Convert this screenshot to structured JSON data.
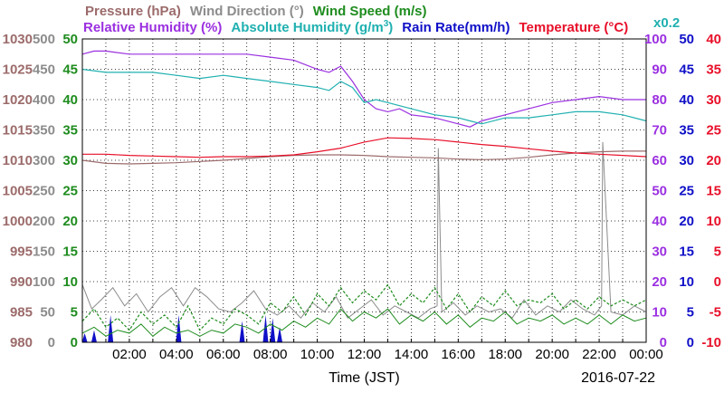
{
  "chart_data": {
    "type": "line",
    "date": "2016-07-22",
    "xlabel": "Time (JST)",
    "x_ticks": [
      "02:00",
      "04:00",
      "06:00",
      "08:00",
      "10:00",
      "12:00",
      "14:00",
      "16:00",
      "18:00",
      "20:00",
      "22:00",
      "00:00"
    ],
    "x_range": [
      0,
      24
    ],
    "grid": true,
    "legend_row1": [
      {
        "label": "Pressure (hPa)",
        "color": "#9c6b6b"
      },
      {
        "label": "Wind Direction (",
        "suffix": "°)",
        "color": "#8c8c8c"
      },
      {
        "label": "Wind Speed (m/s)",
        "color": "#1e8c1e"
      }
    ],
    "legend_row2": [
      {
        "label": "Relative Humidity (%)",
        "color": "#9b30e0"
      },
      {
        "label": "Absolute Humidity (g/m",
        "sup": "3",
        "suffix": ")",
        "color": "#20b0b0"
      },
      {
        "label": "Rain Rate(mm/h)",
        "color": "#1010c8"
      },
      {
        "label": "Temperature (",
        "suffix": "°C)",
        "color": "#e8102a"
      }
    ],
    "multiplier_label": "x0.2",
    "axes": {
      "pressure": {
        "color": "#9c6b6b",
        "ticks": [
          "980",
          "985",
          "990",
          "995",
          "1000",
          "1005",
          "1010",
          "1015",
          "1020",
          "1025",
          "1030"
        ],
        "range": [
          980,
          1030
        ]
      },
      "wind_direction": {
        "color": "#8c8c8c",
        "ticks": [
          "0",
          "50",
          "100",
          "150",
          "200",
          "250",
          "300",
          "350",
          "400",
          "450",
          "500"
        ],
        "range": [
          0,
          500
        ]
      },
      "wind_speed": {
        "color": "#1e8c1e",
        "ticks": [
          "0",
          "5",
          "10",
          "15",
          "20",
          "25",
          "30",
          "35",
          "40",
          "45",
          "50"
        ],
        "range": [
          0,
          50
        ]
      },
      "relative_humidity": {
        "color": "#9b30e0",
        "ticks": [
          "0",
          "10",
          "20",
          "30",
          "40",
          "50",
          "60",
          "70",
          "80",
          "90",
          "100"
        ],
        "range": [
          0,
          100
        ]
      },
      "rain_rate": {
        "color": "#1010c8",
        "ticks": [
          "0",
          "5",
          "10",
          "15",
          "20",
          "25",
          "30",
          "35",
          "40",
          "45",
          "50"
        ],
        "range": [
          0,
          50
        ]
      },
      "temperature": {
        "color": "#e8102a",
        "ticks": [
          "-10",
          "-5",
          "0",
          "5",
          "10",
          "15",
          "20",
          "25",
          "30",
          "35",
          "40"
        ],
        "range": [
          -10,
          40
        ]
      }
    },
    "series": [
      {
        "name": "Pressure (hPa)",
        "axis": "pressure",
        "color": "#9c6b6b",
        "x": [
          0,
          1,
          2,
          3,
          4,
          5,
          6,
          7,
          8,
          9,
          10,
          11,
          12,
          13,
          14,
          15,
          16,
          17,
          18,
          19,
          20,
          21,
          22,
          23,
          24
        ],
        "y": [
          1010.0,
          1009.5,
          1009.4,
          1009.5,
          1009.6,
          1009.8,
          1010.0,
          1010.3,
          1010.6,
          1010.8,
          1010.9,
          1010.9,
          1010.8,
          1010.6,
          1010.5,
          1010.4,
          1010.2,
          1010.1,
          1010.2,
          1010.5,
          1010.9,
          1011.2,
          1011.4,
          1011.5,
          1011.5
        ]
      },
      {
        "name": "Relative Humidity (%)",
        "axis": "relative_humidity",
        "color": "#9b30e0",
        "x": [
          0,
          0.5,
          1,
          2,
          3,
          4,
          5,
          6,
          7,
          8,
          9,
          10,
          10.5,
          11,
          11.5,
          12,
          12.5,
          13,
          13.5,
          14,
          15,
          16,
          16.5,
          17,
          18,
          19,
          20,
          21,
          22,
          23,
          24
        ],
        "y": [
          95,
          96,
          96,
          95,
          95,
          95,
          95,
          95,
          95,
          94,
          93,
          90,
          89,
          91,
          86,
          80,
          77,
          76,
          77,
          75,
          74,
          72,
          71,
          73,
          75,
          77,
          79,
          80,
          81,
          80,
          80
        ]
      },
      {
        "name": "Absolute Humidity (g/m3)",
        "axis": "relative_humidity",
        "color": "#20b0b0",
        "x": [
          0,
          1,
          2,
          3,
          4,
          5,
          6,
          7,
          8,
          9,
          10,
          10.5,
          11,
          11.5,
          12,
          12.5,
          13,
          13.5,
          14,
          15,
          16,
          16.5,
          17,
          18,
          19,
          20,
          21,
          22,
          23,
          24
        ],
        "y": [
          90,
          89,
          89,
          89,
          88,
          87,
          88,
          87,
          86,
          85,
          84,
          83,
          86,
          84,
          79,
          80,
          79,
          78,
          77,
          75,
          74,
          73,
          72,
          74,
          74,
          75,
          76,
          76,
          75,
          73
        ]
      },
      {
        "name": "Temperature (°C)",
        "axis": "temperature",
        "color": "#e8102a",
        "x": [
          0,
          1,
          2,
          3,
          4,
          5,
          6,
          7,
          8,
          9,
          10,
          11,
          12,
          13,
          14,
          15,
          16,
          17,
          18,
          19,
          20,
          21,
          22,
          23,
          24
        ],
        "y": [
          21.0,
          21.0,
          20.8,
          20.7,
          20.6,
          20.5,
          20.6,
          20.6,
          20.7,
          20.9,
          21.4,
          22.0,
          23.0,
          23.7,
          23.6,
          23.4,
          23.0,
          22.6,
          22.3,
          21.9,
          21.5,
          21.2,
          21.0,
          20.8,
          20.6
        ]
      },
      {
        "name": "Wind Direction (°)",
        "axis": "wind_direction",
        "color": "#8c8c8c",
        "style": "noisy",
        "x": [
          0,
          0.4,
          0.8,
          1.3,
          1.8,
          2.3,
          2.8,
          3.3,
          3.8,
          4.3,
          4.8,
          5.3,
          5.8,
          6.3,
          6.8,
          7.3,
          7.8,
          8.3,
          8.8,
          9.3,
          9.8,
          10.3,
          10.8,
          11.3,
          11.8,
          12.3,
          12.8,
          13.3,
          13.8,
          14.3,
          14.8,
          15.1,
          15.15,
          15.3,
          15.8,
          16.3,
          16.8,
          17.3,
          17.8,
          18.3,
          18.8,
          19.3,
          19.8,
          20.3,
          20.8,
          21.3,
          21.8,
          22.1,
          22.15,
          22.5,
          23.0,
          23.5,
          24
        ],
        "y": [
          95,
          55,
          70,
          90,
          60,
          80,
          50,
          75,
          90,
          60,
          90,
          75,
          55,
          50,
          65,
          85,
          55,
          45,
          60,
          40,
          65,
          50,
          75,
          40,
          55,
          70,
          45,
          60,
          50,
          40,
          55,
          60,
          320,
          50,
          65,
          45,
          60,
          50,
          55,
          40,
          70,
          45,
          60,
          50,
          70,
          55,
          45,
          60,
          330,
          50,
          45,
          60,
          50
        ]
      },
      {
        "name": "Wind Speed (m/s)",
        "axis": "wind_speed",
        "color": "#1e8c1e",
        "style": "noisy",
        "x": [
          0,
          0.5,
          1,
          1.5,
          2,
          2.5,
          3,
          3.5,
          4,
          4.5,
          5,
          5.5,
          6,
          6.5,
          7,
          7.5,
          8,
          8.5,
          9,
          9.5,
          10,
          10.5,
          11,
          11.5,
          12,
          12.5,
          13,
          13.5,
          14,
          14.5,
          15,
          15.5,
          16,
          16.5,
          17,
          17.5,
          18,
          18.5,
          19,
          19.5,
          20,
          20.5,
          21,
          21.5,
          22,
          22.5,
          23,
          23.5,
          24
        ],
        "y": [
          1.5,
          2.5,
          1.0,
          2.0,
          1.5,
          3.0,
          1.0,
          2.5,
          1.5,
          2.0,
          1.0,
          2.0,
          1.5,
          3.0,
          2.5,
          1.5,
          3.0,
          2.0,
          3.5,
          2.5,
          4.0,
          3.0,
          5.5,
          3.5,
          5.0,
          4.0,
          5.5,
          3.0,
          4.5,
          3.5,
          5.0,
          3.0,
          4.5,
          2.5,
          4.0,
          3.5,
          5.0,
          3.0,
          4.0,
          3.5,
          4.5,
          3.0,
          4.0,
          3.0,
          4.5,
          3.0,
          4.5,
          3.5,
          4.0
        ]
      },
      {
        "name": "Wind Speed gust (m/s)",
        "axis": "wind_speed",
        "color": "#1e8c1e",
        "style": "dashed",
        "x": [
          0,
          0.5,
          1,
          1.5,
          2,
          2.5,
          3,
          3.5,
          4,
          4.5,
          5,
          5.5,
          6,
          6.5,
          7,
          7.5,
          8,
          8.5,
          9,
          9.5,
          10,
          10.5,
          11,
          11.5,
          12,
          12.5,
          13,
          13.5,
          14,
          14.5,
          15,
          15.5,
          16,
          16.5,
          17,
          17.5,
          18,
          18.5,
          19,
          19.5,
          20,
          20.5,
          21,
          21.5,
          22,
          22.5,
          23,
          23.5,
          24
        ],
        "y": [
          3.5,
          5.5,
          2.5,
          4.0,
          2.0,
          5.0,
          3.0,
          4.5,
          2.5,
          6.0,
          2.0,
          4.0,
          3.0,
          5.5,
          4.5,
          3.0,
          6.5,
          5.0,
          7.5,
          4.5,
          8.0,
          6.0,
          9.0,
          6.5,
          8.5,
          7.0,
          9.5,
          6.0,
          8.0,
          6.5,
          9.0,
          5.5,
          8.0,
          5.0,
          7.5,
          6.0,
          8.5,
          6.0,
          7.0,
          6.5,
          8.0,
          5.5,
          7.0,
          5.5,
          7.5,
          6.0,
          7.0,
          6.0,
          7.0
        ]
      },
      {
        "name": "Rain Rate(mm/h)",
        "axis": "rain_rate",
        "color": "#1010c8",
        "style": "spikes",
        "x": [
          0.1,
          0.5,
          1.2,
          4.1,
          6.8,
          7.8,
          8.1,
          8.4
        ],
        "y": [
          1.5,
          2.0,
          4.5,
          4.5,
          3.5,
          4.5,
          4.0,
          2.5
        ]
      }
    ]
  }
}
